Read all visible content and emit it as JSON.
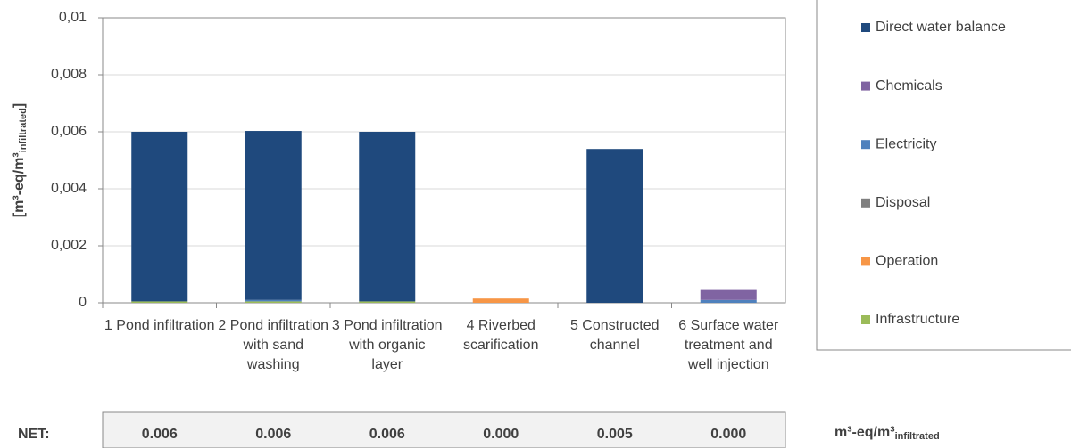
{
  "chart_data": {
    "type": "bar",
    "stacked": true,
    "ylabel": [
      "[m³-eq/m³",
      "infiltrated",
      "]"
    ],
    "categories": [
      "1 Pond infiltration",
      "2 Pond infiltration with sand washing",
      "3 Pond infiltration with organic layer",
      "4 Riverbed scarification",
      "5 Constructed channel",
      "6 Surface water treatment and well injection"
    ],
    "series": [
      {
        "name": "Direct water balance",
        "color": "#1f497d",
        "values": [
          0.00595,
          0.00593,
          0.00595,
          0,
          0.0054,
          0
        ]
      },
      {
        "name": "Chemicals",
        "color": "#8064a2",
        "values": [
          0,
          0,
          0,
          0,
          0,
          0.00035
        ]
      },
      {
        "name": "Electricity",
        "color": "#4f81bd",
        "values": [
          0,
          5e-05,
          0,
          0,
          0,
          0.0001
        ]
      },
      {
        "name": "Disposal",
        "color": "#7f7f7f",
        "values": [
          0,
          0,
          0,
          0,
          0,
          0
        ]
      },
      {
        "name": "Operation",
        "color": "#f79646",
        "values": [
          0,
          0,
          0,
          0.00015,
          0,
          0
        ]
      },
      {
        "name": "Infrastructure",
        "color": "#9bbb59",
        "values": [
          5e-05,
          5e-05,
          5e-05,
          0,
          0,
          0
        ]
      }
    ],
    "ylim": [
      0,
      0.01
    ],
    "yticks": [
      0,
      {
        "value": 0.002,
        "label": "0,002"
      },
      {
        "value": 0.004,
        "label": "0,004"
      },
      {
        "value": 0.006,
        "label": "0,006"
      },
      {
        "value": 0.008,
        "label": "0,008"
      },
      {
        "value": 0.01,
        "label": "0,01"
      }
    ],
    "grid": true,
    "legend": "right",
    "net_label": "NET:",
    "net_values": [
      "0.006",
      "0.006",
      "0.006",
      "0.000",
      "0.005",
      "0.000"
    ],
    "net_unit": [
      "m³-eq/m³",
      "infiltrated"
    ]
  }
}
